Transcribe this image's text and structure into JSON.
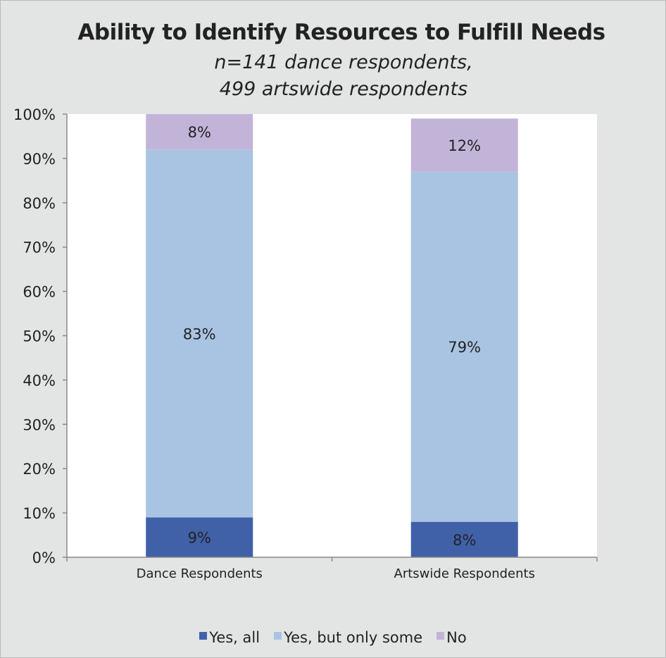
{
  "chart_data": {
    "type": "bar",
    "stacked": true,
    "title": "Ability to Identify Resources to Fulfill Needs",
    "subtitle": "n=141 dance respondents, 499 artswide respondents",
    "categories": [
      "Dance Respondents",
      "Artswide Respondents"
    ],
    "series": [
      {
        "name": "Yes, all",
        "values": [
          9,
          8
        ],
        "labels": [
          "9%",
          "8%"
        ],
        "color": "#4060a8"
      },
      {
        "name": "Yes, but only some",
        "values": [
          83,
          79
        ],
        "labels": [
          "83%",
          "79%"
        ],
        "color": "#a9c4e2"
      },
      {
        "name": "No",
        "values": [
          8,
          12
        ],
        "labels": [
          "8%",
          "12%"
        ],
        "color": "#c2b4d8"
      }
    ],
    "ylim": [
      0,
      100
    ],
    "yticks": [
      "0%",
      "10%",
      "20%",
      "30%",
      "40%",
      "50%",
      "60%",
      "70%",
      "80%",
      "90%",
      "100%"
    ],
    "legend_position": "bottom"
  }
}
